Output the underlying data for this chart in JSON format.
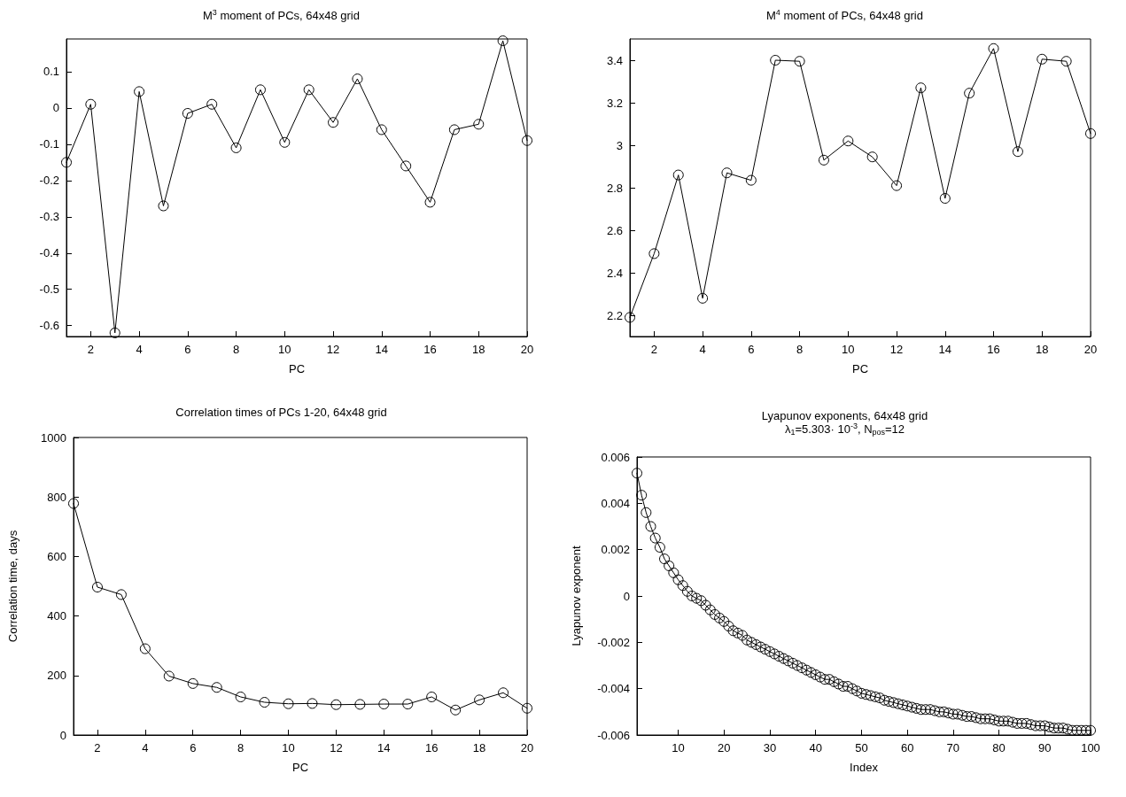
{
  "chart_data": [
    {
      "type": "line",
      "title": "M$^{3}$ moment of PCs, 64x48 grid",
      "xlabel": "PC",
      "marker": "circle",
      "line_style": "solid",
      "color": "#000000",
      "x": [
        1,
        2,
        3,
        4,
        5,
        6,
        7,
        8,
        9,
        10,
        11,
        12,
        13,
        14,
        15,
        16,
        17,
        18,
        19,
        20
      ],
      "values": [
        -0.15,
        0.01,
        -0.62,
        0.045,
        -0.27,
        -0.015,
        0.01,
        -0.11,
        0.05,
        -0.095,
        0.05,
        -0.04,
        0.08,
        -0.06,
        -0.16,
        -0.26,
        -0.06,
        -0.045,
        0.185,
        -0.09
      ],
      "xlim": [
        1,
        20
      ],
      "xticks": [
        2,
        4,
        6,
        8,
        10,
        12,
        14,
        16,
        18,
        20
      ],
      "ylim": [
        -0.63,
        0.19
      ],
      "yticks": [
        -0.6,
        -0.5,
        -0.4,
        -0.3,
        -0.2,
        -0.1,
        0,
        0.1
      ]
    },
    {
      "type": "line",
      "title": "M$^{4}$ moment of PCs, 64x48 grid",
      "xlabel": "PC",
      "marker": "circle",
      "line_style": "solid",
      "color": "#000000",
      "x": [
        1,
        2,
        3,
        4,
        5,
        6,
        7,
        8,
        9,
        10,
        11,
        12,
        13,
        14,
        15,
        16,
        17,
        18,
        19,
        20
      ],
      "values": [
        2.19,
        2.49,
        2.86,
        2.28,
        2.87,
        2.835,
        3.4,
        3.395,
        2.93,
        3.02,
        2.945,
        2.81,
        3.27,
        2.75,
        3.245,
        3.455,
        2.97,
        3.405,
        3.395,
        3.055
      ],
      "xlim": [
        1,
        20
      ],
      "xticks": [
        2,
        4,
        6,
        8,
        10,
        12,
        14,
        16,
        18,
        20
      ],
      "ylim": [
        2.1,
        3.5
      ],
      "yticks": [
        2.2,
        2.4,
        2.6,
        2.8,
        3,
        3.2,
        3.4
      ]
    },
    {
      "type": "line",
      "title": "Correlation times of PCs 1-20, 64x48 grid",
      "xlabel": "PC",
      "ylabel": "Correlation time, days",
      "marker": "circle",
      "line_style": "solid",
      "color": "#000000",
      "x": [
        1,
        2,
        3,
        4,
        5,
        6,
        7,
        8,
        9,
        10,
        11,
        12,
        13,
        14,
        15,
        16,
        17,
        18,
        19,
        20
      ],
      "values": [
        778,
        497,
        472,
        290,
        198,
        173,
        160,
        128,
        110,
        105,
        106,
        102,
        103,
        104,
        104,
        128,
        84,
        118,
        142,
        90
      ],
      "xlim": [
        1,
        20
      ],
      "xticks": [
        2,
        4,
        6,
        8,
        10,
        12,
        14,
        16,
        18,
        20
      ],
      "ylim": [
        0,
        1000
      ],
      "yticks": [
        0,
        200,
        400,
        600,
        800,
        1000
      ]
    },
    {
      "type": "line",
      "title": "Lyapunov exponents, 64x48 grid",
      "subtitle": "λ$_{1}$=5.303· 10$^{-3}$, N$_{pos}$=12",
      "xlabel": "Index",
      "ylabel": "Lyapunov exponent",
      "marker": "circle",
      "line_style": "solid",
      "color": "#000000",
      "x": [
        1,
        2,
        3,
        4,
        5,
        6,
        7,
        8,
        9,
        10,
        11,
        12,
        13,
        14,
        15,
        16,
        17,
        18,
        19,
        20,
        21,
        22,
        23,
        24,
        25,
        26,
        27,
        28,
        29,
        30,
        31,
        32,
        33,
        34,
        35,
        36,
        37,
        38,
        39,
        40,
        41,
        42,
        43,
        44,
        45,
        46,
        47,
        48,
        49,
        50,
        51,
        52,
        53,
        54,
        55,
        56,
        57,
        58,
        59,
        60,
        61,
        62,
        63,
        64,
        65,
        66,
        67,
        68,
        69,
        70,
        71,
        72,
        73,
        74,
        75,
        76,
        77,
        78,
        79,
        80,
        81,
        82,
        83,
        84,
        85,
        86,
        87,
        88,
        89,
        90,
        91,
        92,
        93,
        94,
        95,
        96,
        97,
        98,
        99,
        100
      ],
      "values": [
        0.0053,
        0.00435,
        0.0036,
        0.003,
        0.0025,
        0.0021,
        0.0016,
        0.0013,
        0.001,
        0.0007,
        0.00045,
        0.0002,
        0.0,
        -0.0001,
        -0.0002,
        -0.0004,
        -0.0006,
        -0.0008,
        -0.00095,
        -0.0011,
        -0.0013,
        -0.0015,
        -0.0016,
        -0.0017,
        -0.0019,
        -0.002,
        -0.0021,
        -0.0022,
        -0.0023,
        -0.0024,
        -0.0025,
        -0.0026,
        -0.0027,
        -0.0028,
        -0.0029,
        -0.003,
        -0.0031,
        -0.0032,
        -0.0033,
        -0.0034,
        -0.0035,
        -0.0036,
        -0.0036,
        -0.0037,
        -0.0038,
        -0.0039,
        -0.0039,
        -0.004,
        -0.0041,
        -0.0042,
        -0.00425,
        -0.0043,
        -0.00435,
        -0.0044,
        -0.0045,
        -0.00455,
        -0.0046,
        -0.00465,
        -0.0047,
        -0.00475,
        -0.0048,
        -0.00485,
        -0.0049,
        -0.0049,
        -0.0049,
        -0.00495,
        -0.005,
        -0.005,
        -0.00505,
        -0.0051,
        -0.0051,
        -0.00515,
        -0.0052,
        -0.0052,
        -0.00525,
        -0.0053,
        -0.0053,
        -0.0053,
        -0.00535,
        -0.0054,
        -0.0054,
        -0.0054,
        -0.00545,
        -0.0055,
        -0.0055,
        -0.0055,
        -0.00555,
        -0.0056,
        -0.0056,
        -0.0056,
        -0.00565,
        -0.0057,
        -0.0057,
        -0.0057,
        -0.00575,
        -0.0058,
        -0.0058,
        -0.0058,
        -0.0058,
        -0.0058
      ],
      "xlim": [
        1,
        100
      ],
      "xticks": [
        10,
        20,
        30,
        40,
        50,
        60,
        70,
        80,
        90,
        100
      ],
      "ylim": [
        -0.006,
        0.006
      ],
      "yticks": [
        -0.006,
        -0.004,
        -0.002,
        0,
        0.002,
        0.004,
        0.006
      ]
    }
  ]
}
